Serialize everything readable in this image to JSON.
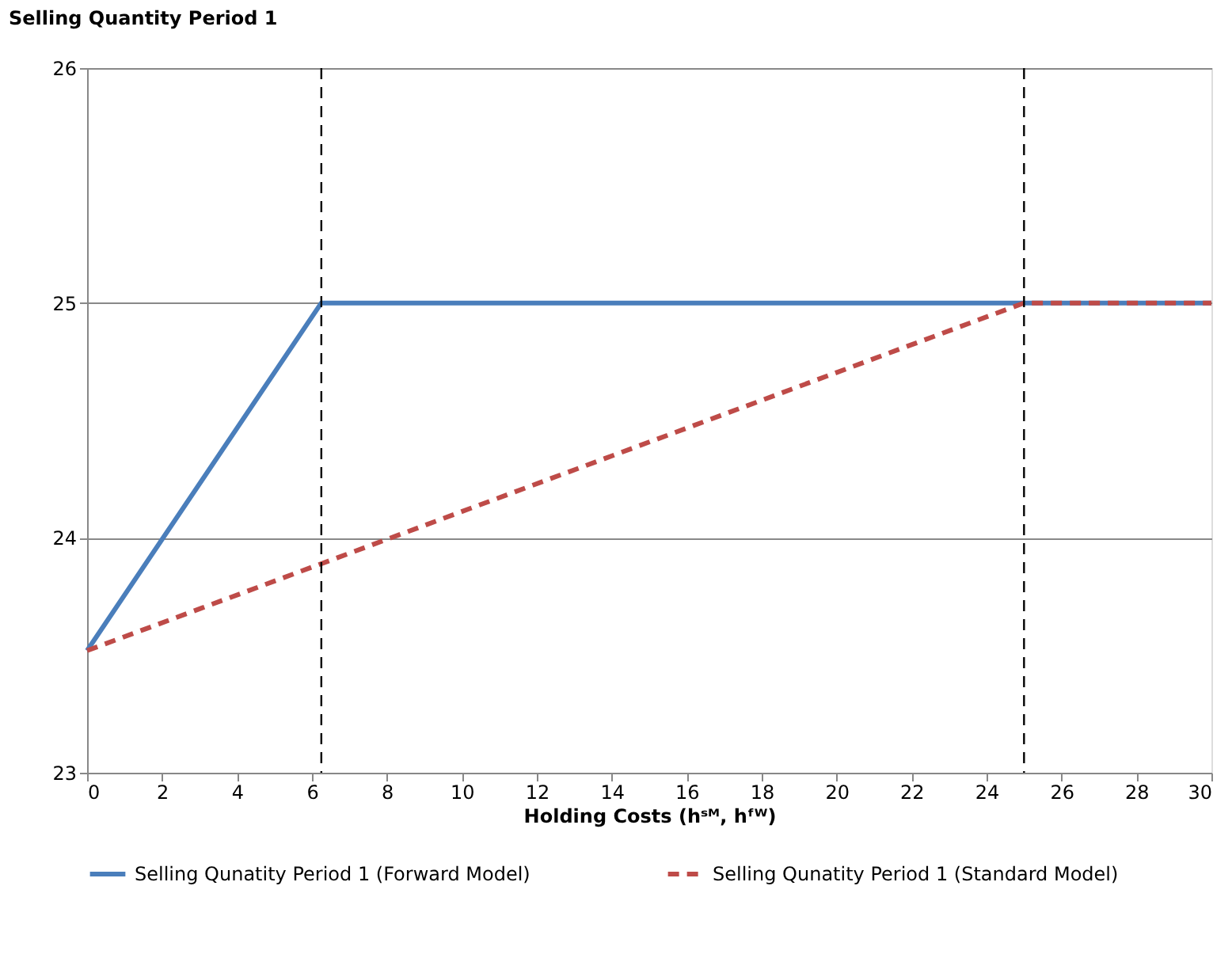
{
  "chart_data": {
    "type": "line",
    "xlabel": "Holding Costs (hˢᴹ, hᶠᵂ)",
    "ylabel": "Selling Quantity Period 1",
    "xlim": [
      0,
      30
    ],
    "xticks": [
      0,
      2,
      4,
      6,
      8,
      10,
      12,
      14,
      16,
      18,
      20,
      22,
      24,
      26,
      28,
      30
    ],
    "ylim": [
      23,
      26
    ],
    "yticks": [
      23,
      24,
      25,
      26
    ],
    "grid": "y",
    "legend": "bottom",
    "marker": "none",
    "series": [
      {
        "name": "Selling Qunatity Period 1 (Forward Model)",
        "color": "#4a7ebb",
        "line_style": "solid",
        "x": [
          0,
          6.25,
          30
        ],
        "values": [
          23.52,
          25,
          25
        ]
      },
      {
        "name": "Selling Qunatity Period 1 (Standard Model)",
        "color": "#be4b48",
        "line_style": "dashed",
        "x": [
          0,
          25,
          30
        ],
        "values": [
          23.52,
          25,
          25
        ]
      }
    ],
    "ref_lines": [
      {
        "axis": "x",
        "value": 6.25,
        "color": "#000000",
        "line_style": "dashed"
      },
      {
        "axis": "x",
        "value": 25,
        "color": "#000000",
        "line_style": "dashed"
      }
    ]
  }
}
